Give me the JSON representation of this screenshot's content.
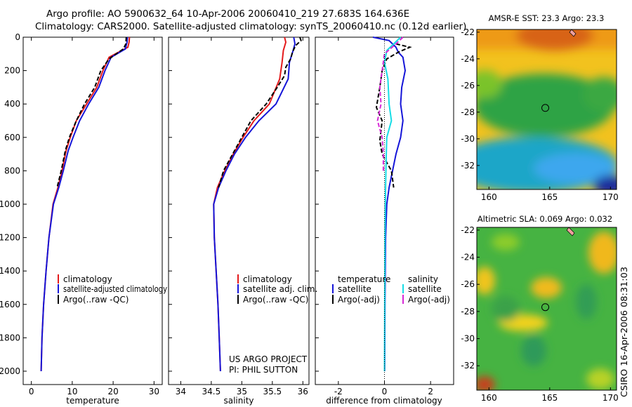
{
  "header": {
    "line1": "Argo profile: AO 5900632_64 10-Apr-2006 20060410_219 27.683S 164.636E",
    "line2": "Climatology: CARS2000. Satellite-adjusted climatology: synTS_20060410.nc (0.12d earlier)"
  },
  "side_label": "CSIRO 16-Apr-2006 08:31:03",
  "credit": {
    "line1": "US ARGO PROJECT",
    "line2": "PI: PHIL SUTTON"
  },
  "colors": {
    "red": "#e41a1c",
    "blue": "#1515d8",
    "black": "#000000",
    "cyan": "#16dde6",
    "magenta": "#d629d6"
  },
  "chart_data": [
    {
      "type": "line",
      "panel": "temperature",
      "xlabel": "temperature",
      "xlim": [
        -2,
        32
      ],
      "xticks": [
        0,
        10,
        20,
        30
      ],
      "ylim": [
        2080,
        0
      ],
      "yticks": [
        0,
        200,
        400,
        600,
        800,
        1000,
        1200,
        1400,
        1600,
        1800,
        2000
      ],
      "legend": [
        "climatology",
        "satellite-adjusted climatology",
        "Argo(..raw -QC)"
      ],
      "series": [
        {
          "name": "climatology",
          "color": "red",
          "dash": false,
          "points": [
            [
              24.0,
              0
            ],
            [
              23.9,
              30
            ],
            [
              23.6,
              60
            ],
            [
              19.0,
              120
            ],
            [
              17.5,
              200
            ],
            [
              16.0,
              300
            ],
            [
              13.5,
              400
            ],
            [
              11.0,
              500
            ],
            [
              9.5,
              600
            ],
            [
              8.5,
              680
            ],
            [
              7.5,
              800
            ],
            [
              6.5,
              900
            ],
            [
              5.3,
              1000
            ],
            [
              4.3,
              1200
            ],
            [
              3.6,
              1400
            ],
            [
              3.0,
              1600
            ],
            [
              2.6,
              1800
            ],
            [
              2.4,
              2000
            ]
          ]
        },
        {
          "name": "satellite-adjusted climatology",
          "color": "blue",
          "dash": false,
          "points": [
            [
              23.5,
              0
            ],
            [
              23.4,
              30
            ],
            [
              23.0,
              70
            ],
            [
              19.5,
              120
            ],
            [
              18.0,
              200
            ],
            [
              16.5,
              300
            ],
            [
              14.0,
              400
            ],
            [
              11.8,
              500
            ],
            [
              10.2,
              600
            ],
            [
              9.0,
              680
            ],
            [
              7.8,
              800
            ],
            [
              6.7,
              900
            ],
            [
              5.4,
              1000
            ],
            [
              4.3,
              1200
            ],
            [
              3.6,
              1400
            ],
            [
              3.0,
              1600
            ],
            [
              2.6,
              1800
            ],
            [
              2.4,
              2000
            ]
          ]
        },
        {
          "name": "Argo(..raw -QC)",
          "color": "black",
          "dash": true,
          "points": [
            [
              23.2,
              0
            ],
            [
              23.1,
              40
            ],
            [
              22.5,
              70
            ],
            [
              19.0,
              130
            ],
            [
              17.0,
              200
            ],
            [
              15.5,
              300
            ],
            [
              13.0,
              400
            ],
            [
              11.0,
              500
            ],
            [
              9.3,
              600
            ],
            [
              8.3,
              680
            ],
            [
              7.3,
              800
            ],
            [
              6.3,
              900
            ]
          ]
        }
      ]
    },
    {
      "type": "line",
      "panel": "salinity",
      "xlabel": "salinity",
      "xlim": [
        33.8,
        36.1
      ],
      "xticks": [
        34,
        34.5,
        35,
        35.5,
        36
      ],
      "ylim": [
        2080,
        0
      ],
      "legend": [
        "climatology",
        "satellite adj. clim.",
        "Argo(..raw -QC)"
      ],
      "series": [
        {
          "name": "climatology",
          "color": "red",
          "dash": false,
          "points": [
            [
              35.7,
              0
            ],
            [
              35.72,
              30
            ],
            [
              35.68,
              80
            ],
            [
              35.66,
              150
            ],
            [
              35.62,
              250
            ],
            [
              35.45,
              400
            ],
            [
              35.2,
              500
            ],
            [
              35.02,
              600
            ],
            [
              34.86,
              700
            ],
            [
              34.72,
              800
            ],
            [
              34.6,
              900
            ],
            [
              34.54,
              1000
            ],
            [
              34.55,
              1200
            ],
            [
              34.58,
              1400
            ],
            [
              34.61,
              1600
            ],
            [
              34.63,
              1800
            ],
            [
              34.65,
              2000
            ]
          ]
        },
        {
          "name": "satellite adj. clim.",
          "color": "blue",
          "dash": false,
          "points": [
            [
              35.85,
              0
            ],
            [
              35.87,
              40
            ],
            [
              35.84,
              80
            ],
            [
              35.78,
              150
            ],
            [
              35.76,
              250
            ],
            [
              35.56,
              400
            ],
            [
              35.28,
              500
            ],
            [
              35.06,
              600
            ],
            [
              34.88,
              700
            ],
            [
              34.74,
              800
            ],
            [
              34.62,
              900
            ],
            [
              34.54,
              1000
            ],
            [
              34.55,
              1200
            ],
            [
              34.58,
              1400
            ],
            [
              34.61,
              1600
            ],
            [
              34.63,
              1800
            ],
            [
              34.65,
              2000
            ]
          ]
        },
        {
          "name": "Argo(..raw -QC)",
          "color": "black",
          "dash": true,
          "points": [
            [
              35.95,
              0
            ],
            [
              35.97,
              20
            ],
            [
              35.88,
              50
            ],
            [
              35.83,
              90
            ],
            [
              35.8,
              130
            ],
            [
              35.72,
              180
            ],
            [
              35.7,
              230
            ],
            [
              35.58,
              300
            ],
            [
              35.4,
              400
            ],
            [
              35.15,
              500
            ],
            [
              35.0,
              600
            ],
            [
              34.85,
              700
            ],
            [
              34.7,
              800
            ],
            [
              34.62,
              900
            ]
          ]
        }
      ]
    },
    {
      "type": "line",
      "panel": "difference",
      "xlabel": "difference from climatology",
      "xlim": [
        -3,
        3
      ],
      "xticks": [
        -2,
        0,
        2
      ],
      "ylim": [
        2080,
        0
      ],
      "legend_temperature": {
        "title": "temperature",
        "items": [
          "satellite",
          "Argo(-adj)"
        ]
      },
      "legend_salinity": {
        "title": "salinity",
        "items": [
          "satellite",
          "Argo(-adj)"
        ]
      },
      "series": [
        {
          "name": "temperature satellite",
          "color": "blue",
          "dash": false,
          "points": [
            [
              -0.5,
              0
            ],
            [
              0.2,
              20
            ],
            [
              0.5,
              60
            ],
            [
              0.6,
              90
            ],
            [
              0.8,
              120
            ],
            [
              0.9,
              200
            ],
            [
              0.75,
              300
            ],
            [
              0.7,
              400
            ],
            [
              0.8,
              500
            ],
            [
              0.7,
              600
            ],
            [
              0.5,
              700
            ],
            [
              0.35,
              800
            ],
            [
              0.2,
              900
            ],
            [
              0.1,
              1000
            ],
            [
              0.05,
              1200
            ],
            [
              0.02,
              1600
            ],
            [
              0.01,
              2000
            ]
          ]
        },
        {
          "name": "temperature Argo(-adj)",
          "color": "black",
          "dash": true,
          "points": [
            [
              0.5,
              40
            ],
            [
              1.1,
              60
            ],
            [
              0.6,
              90
            ],
            [
              0.1,
              130
            ],
            [
              -0.1,
              200
            ],
            [
              -0.2,
              300
            ],
            [
              -0.35,
              420
            ],
            [
              -0.1,
              500
            ],
            [
              -0.2,
              620
            ],
            [
              -0.1,
              700
            ],
            [
              0.3,
              800
            ],
            [
              0.4,
              900
            ]
          ]
        },
        {
          "name": "salinity satellite",
          "color": "cyan",
          "dash": false,
          "points": [
            [
              0.7,
              0
            ],
            [
              0.1,
              80
            ],
            [
              0.0,
              150
            ],
            [
              0.15,
              250
            ],
            [
              0.2,
              400
            ],
            [
              0.3,
              500
            ],
            [
              0.1,
              600
            ],
            [
              0.08,
              700
            ],
            [
              0.05,
              900
            ],
            [
              0.02,
              1200
            ],
            [
              0.0,
              2000
            ]
          ]
        },
        {
          "name": "salinity Argo(-adj)",
          "color": "magenta",
          "dash": true,
          "points": [
            [
              0.8,
              0
            ],
            [
              0.5,
              40
            ],
            [
              0.0,
              100
            ],
            [
              -0.1,
              200
            ],
            [
              -0.2,
              300
            ],
            [
              -0.15,
              400
            ],
            [
              -0.3,
              500
            ],
            [
              -0.1,
              600
            ],
            [
              -0.05,
              700
            ],
            [
              -0.05,
              800
            ]
          ]
        }
      ]
    },
    {
      "type": "heatmap",
      "panel": "sst_map",
      "title": "AMSR-E SST: 23.3 Argo: 23.3",
      "xlim": [
        159,
        170.5
      ],
      "ylim": [
        -33.8,
        -21.8
      ],
      "xticks": [
        160,
        165,
        170
      ],
      "yticks": [
        -22,
        -24,
        -26,
        -28,
        -30,
        -32
      ],
      "marker": [
        164.636,
        -27.683
      ]
    },
    {
      "type": "heatmap",
      "panel": "sla_map",
      "title": "Altimetric SLA: 0.069 Argo: 0.032",
      "xlim": [
        159,
        170.5
      ],
      "ylim": [
        -33.8,
        -21.8
      ],
      "xticks": [
        160,
        165,
        170
      ],
      "yticks": [
        -22,
        -24,
        -26,
        -28,
        -30,
        -32
      ],
      "marker": [
        164.636,
        -27.683
      ]
    }
  ]
}
